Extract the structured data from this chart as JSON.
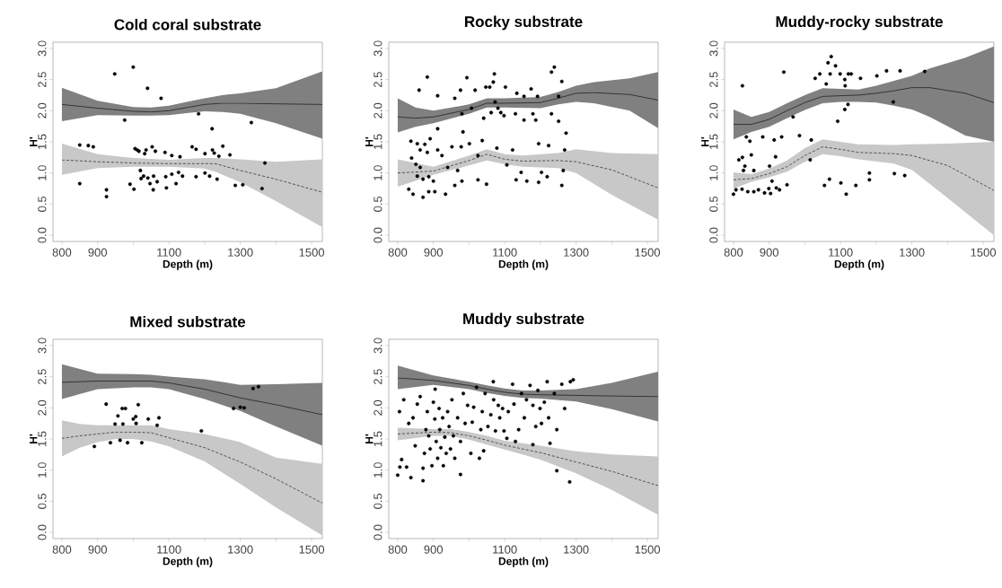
{
  "chart_data": [
    {
      "type": "scatter",
      "title": "Cold coral substrate",
      "xlabel": "Depth (m)",
      "ylabel": "H'",
      "xlim": [
        775,
        1530
      ],
      "ylim": [
        -0.1,
        3.1
      ],
      "xticks": [
        800,
        900,
        {
          "value": 1000,
          "label": null
        },
        1100,
        {
          "value": 1200,
          "label": null
        },
        1300,
        {
          "value": 1400,
          "label": null
        },
        1500
      ],
      "yticks": [
        {
          "value": 0,
          "label": "0.0"
        },
        {
          "value": 0.5,
          "label": "0.5"
        },
        {
          "value": 1,
          "label": "1.0"
        },
        {
          "value": 1.5,
          "label": "1.5"
        },
        {
          "value": 2,
          "label": "2.0"
        },
        {
          "value": 2.5,
          "label": "2.5"
        },
        {
          "value": 3,
          "label": "3.0"
        }
      ],
      "series": [
        {
          "type": "scatter",
          "color": "#000000",
          "marker": "circle",
          "x": [
            850,
            850,
            874,
            888,
            925,
            925,
            948,
            976,
            991,
            1000,
            1002,
            1005,
            1011,
            1016,
            1020,
            1022,
            1029,
            1032,
            1036,
            1040,
            1041,
            1047,
            1053,
            1056,
            1057,
            1062,
            1067,
            1078,
            1089,
            1091,
            1093,
            1108,
            1108,
            1120,
            1127,
            1131,
            1138,
            1165,
            1176,
            1176,
            1183,
            1201,
            1201,
            1214,
            1221,
            1222,
            1227,
            1235,
            1240,
            1251,
            1271,
            1286,
            1307,
            1331,
            1361,
            1369
          ],
          "values": [
            1.45,
            0.83,
            1.44,
            1.42,
            0.73,
            0.62,
            2.59,
            1.85,
            0.82,
            2.7,
            0.74,
            1.39,
            1.37,
            1.35,
            1.04,
            0.91,
            0.95,
            1.31,
            1.37,
            2.36,
            0.92,
            0.83,
            1.42,
            0.73,
            0.95,
            1.35,
            0.86,
            2.2,
            1.33,
            0.94,
            0.76,
            1.28,
            0.98,
            0.83,
            1.01,
            1.26,
            0.95,
            1.42,
            0.94,
            1.38,
            1.95,
            1.31,
            1.0,
            0.95,
            1.71,
            1.37,
            1.32,
            0.9,
            1.27,
            1.43,
            1.29,
            0.8,
            0.81,
            1.81,
            0.75,
            1.16
          ]
        },
        {
          "type": "line",
          "color": "#000000",
          "line_style": "solid",
          "x": [
            800,
            900,
            1000,
            1050,
            1100,
            1150,
            1200,
            1250,
            1300,
            1400,
            1530
          ],
          "values": [
            2.1,
            2.04,
            1.99,
            1.98,
            2.0,
            2.05,
            2.1,
            2.12,
            2.12,
            2.11,
            2.1
          ],
          "lower": [
            1.83,
            1.93,
            1.92,
            1.92,
            1.93,
            1.96,
            1.99,
            1.98,
            1.95,
            1.8,
            1.55
          ],
          "upper": [
            2.37,
            2.16,
            2.06,
            2.05,
            2.08,
            2.14,
            2.2,
            2.25,
            2.28,
            2.36,
            2.63
          ]
        },
        {
          "type": "line",
          "color": "#000000",
          "line_style": "dashed",
          "x": [
            800,
            900,
            1000,
            1100,
            1200,
            1230,
            1300,
            1400,
            1530
          ],
          "values": [
            1.21,
            1.18,
            1.16,
            1.15,
            1.15,
            1.15,
            1.04,
            0.9,
            0.69
          ],
          "lower": [
            0.97,
            1.08,
            1.1,
            1.1,
            1.07,
            1.02,
            0.85,
            0.55,
            0.13
          ],
          "upper": [
            1.47,
            1.3,
            1.24,
            1.21,
            1.24,
            1.24,
            1.22,
            1.18,
            1.22
          ]
        }
      ]
    },
    {
      "type": "scatter",
      "title": "Rocky substrate",
      "xlabel": "Depth (m)",
      "ylabel": "H'",
      "xlim": [
        775,
        1530
      ],
      "ylim": [
        -0.1,
        3.1
      ],
      "xticks": [
        800,
        900,
        {
          "value": 1000,
          "label": null
        },
        1100,
        {
          "value": 1200,
          "label": null
        },
        1300,
        {
          "value": 1400,
          "label": null
        },
        1500
      ],
      "yticks": [
        {
          "value": 0,
          "label": "0.0"
        },
        {
          "value": 0.5,
          "label": "0.5"
        },
        {
          "value": 1,
          "label": "1.0"
        },
        {
          "value": 1.5,
          "label": "1.5"
        },
        {
          "value": 2,
          "label": "2.0"
        },
        {
          "value": 2.5,
          "label": "2.5"
        },
        {
          "value": 3,
          "label": "3.0"
        }
      ],
      "series": [
        {
          "type": "scatter",
          "color": "#000000",
          "marker": "circle",
          "x": [
            860,
            883,
            912,
            837,
            855,
            863,
            876,
            883,
            891,
            839,
            851,
            863,
            855,
            871,
            887,
            900,
            831,
            843,
            871,
            887,
            904,
            912,
            912,
            924,
            934,
            940,
            952,
            960,
            968,
            978,
            980,
            983,
            960,
            976,
            994,
            980,
            1001,
            1007,
            1017,
            1025,
            1037,
            1041,
            1025,
            1047,
            1049,
            1058,
            1062,
            1068,
            1071,
            1073,
            1081,
            1089,
            1098,
            1106,
            1078,
            1102,
            1122,
            1130,
            1134,
            1132,
            1154,
            1154,
            1146,
            1174,
            1179,
            1162,
            1192,
            1187,
            1195,
            1203,
            1195,
            1223,
            1219,
            1231,
            1239,
            1231,
            1251,
            1251,
            1260,
            1264,
            1260,
            1268,
            1272
          ],
          "values": [
            2.33,
            2.54,
            2.24,
            1.51,
            1.47,
            1.37,
            1.46,
            1.33,
            1.55,
            1.24,
            1.14,
            1.09,
            0.95,
            0.9,
            0.94,
            0.87,
            0.74,
            0.66,
            0.61,
            0.7,
            0.7,
            1.37,
            1.71,
            1.28,
            0.66,
            1.09,
            1.42,
            0.8,
            1.04,
            1.42,
            0.87,
            1.66,
            2.2,
            2.33,
            2.53,
            1.95,
            1.47,
            2.04,
            2.33,
            1.28,
            1.52,
            1.88,
            0.89,
            2.38,
            0.82,
            2.38,
            1.97,
            2.46,
            2.59,
            2.14,
            2.04,
            1.97,
            1.92,
            1.13,
            1.4,
            2.38,
            1.37,
            1.95,
            2.28,
            0.89,
            1.85,
            2.23,
            1.01,
            2.35,
            1.95,
            0.87,
            2.23,
            1.85,
            1.47,
            1.01,
            0.85,
            1.44,
            0.94,
            2.62,
            2.7,
            1.95,
            2.23,
            1.83,
            2.47,
            1.04,
            0.8,
            1.37,
            1.64
          ]
        },
        {
          "type": "line",
          "color": "#000000",
          "line_style": "solid",
          "x": [
            800,
            850,
            900,
            1000,
            1050,
            1100,
            1200,
            1250,
            1300,
            1350,
            1450,
            1530
          ],
          "values": [
            1.9,
            1.88,
            1.9,
            2.02,
            2.12,
            2.12,
            2.13,
            2.2,
            2.28,
            2.29,
            2.26,
            2.17
          ],
          "lower": [
            1.65,
            1.74,
            1.8,
            1.95,
            2.05,
            2.05,
            2.04,
            2.1,
            2.14,
            2.12,
            2.0,
            1.72
          ],
          "upper": [
            2.2,
            2.05,
            2.0,
            2.1,
            2.2,
            2.2,
            2.22,
            2.3,
            2.4,
            2.46,
            2.52,
            2.62
          ]
        },
        {
          "type": "line",
          "color": "#000000",
          "line_style": "dashed",
          "x": [
            800,
            900,
            1000,
            1050,
            1100,
            1150,
            1250,
            1300,
            1400,
            1530
          ],
          "values": [
            1.0,
            1.03,
            1.2,
            1.3,
            1.22,
            1.19,
            1.2,
            1.18,
            1.05,
            0.76
          ],
          "lower": [
            0.78,
            0.97,
            1.12,
            1.2,
            1.14,
            1.1,
            1.08,
            1.0,
            0.65,
            0.25
          ],
          "upper": [
            1.22,
            1.1,
            1.28,
            1.38,
            1.3,
            1.28,
            1.32,
            1.38,
            1.32,
            1.3
          ]
        }
      ]
    },
    {
      "type": "scatter",
      "title": "Muddy-rocky substrate",
      "xlabel": "Depth (m)",
      "ylabel": "H'",
      "xlim": [
        775,
        1530
      ],
      "ylim": [
        -0.1,
        3.1
      ],
      "xticks": [
        800,
        900,
        {
          "value": 1000,
          "label": null
        },
        1100,
        {
          "value": 1200,
          "label": null
        },
        1300,
        {
          "value": 1400,
          "label": null
        },
        1500
      ],
      "yticks": [
        {
          "value": 0,
          "label": "0.0"
        },
        {
          "value": 0.5,
          "label": "0.5"
        },
        {
          "value": 1,
          "label": "1.0"
        },
        {
          "value": 1.5,
          "label": "1.5"
        },
        {
          "value": 2,
          "label": "2.0"
        },
        {
          "value": 2.5,
          "label": "2.5"
        },
        {
          "value": 3,
          "label": "3.0"
        }
      ],
      "series": [
        {
          "type": "scatter",
          "color": "#000000",
          "marker": "circle",
          "x": [
            800,
            807,
            815,
            825,
            825,
            828,
            832,
            836,
            840,
            846,
            850,
            857,
            824,
            857,
            870,
            882,
            887,
            899,
            901,
            904,
            908,
            914,
            918,
            920,
            929,
            935,
            941,
            950,
            967,
            985,
            1015,
            1018,
            1029,
            1042,
            1055,
            1060,
            1065,
            1069,
            1071,
            1074,
            1086,
            1092,
            1099,
            1101,
            1112,
            1113,
            1112,
            1116,
            1121,
            1122,
            1130,
            1143,
            1156,
            1181,
            1181,
            1202,
            1229,
            1248,
            1251,
            1267,
            1280,
            1336
          ],
          "values": [
            0.66,
            0.73,
            1.21,
            2.4,
            1.25,
            1.04,
            1.11,
            1.58,
            0.7,
            1.51,
            1.29,
            1.04,
            0.74,
            0.7,
            0.73,
            1.58,
            0.68,
            0.75,
            1.11,
            0.67,
            0.87,
            1.53,
            1.26,
            0.76,
            0.73,
            1.58,
            2.62,
            0.81,
            1.9,
            1.6,
            1.21,
            1.53,
            2.52,
            2.59,
            0.8,
            2.43,
            2.77,
            0.9,
            2.59,
            2.87,
            2.72,
            1.83,
            2.59,
            0.84,
            2.5,
            2.4,
            2.02,
            0.66,
            2.1,
            2.59,
            2.59,
            0.8,
            2.52,
            1.0,
            0.89,
            2.56,
            2.64,
            2.14,
            0.99,
            2.64,
            0.96,
            2.63
          ]
        },
        {
          "type": "line",
          "color": "#000000",
          "line_style": "solid",
          "x": [
            800,
            850,
            900,
            950,
            1000,
            1050,
            1100,
            1150,
            1200,
            1250,
            1300,
            1350,
            1450,
            1530
          ],
          "values": [
            1.78,
            1.78,
            1.86,
            2.0,
            2.13,
            2.23,
            2.24,
            2.25,
            2.28,
            2.32,
            2.37,
            2.37,
            2.28,
            2.13
          ],
          "lower": [
            1.54,
            1.66,
            1.74,
            1.88,
            2.01,
            2.12,
            2.14,
            2.14,
            2.13,
            2.08,
            2.02,
            1.9,
            1.6,
            1.5
          ],
          "upper": [
            2.02,
            1.9,
            1.98,
            2.12,
            2.25,
            2.36,
            2.35,
            2.34,
            2.4,
            2.48,
            2.56,
            2.68,
            2.85,
            3.03
          ]
        },
        {
          "type": "line",
          "color": "#000000",
          "line_style": "dashed",
          "x": [
            800,
            850,
            900,
            950,
            1000,
            1050,
            1100,
            1150,
            1250,
            1300,
            1400,
            1530
          ],
          "values": [
            0.89,
            0.91,
            0.99,
            1.1,
            1.28,
            1.42,
            1.38,
            1.33,
            1.31,
            1.28,
            1.12,
            0.72
          ],
          "lower": [
            0.75,
            0.86,
            0.93,
            1.02,
            1.18,
            1.3,
            1.27,
            1.22,
            1.15,
            1.05,
            0.6,
            0.0
          ],
          "upper": [
            1.01,
            0.98,
            1.07,
            1.2,
            1.4,
            1.54,
            1.5,
            1.46,
            1.45,
            1.46,
            1.47,
            1.5
          ]
        }
      ]
    },
    {
      "type": "scatter",
      "title": "Mixed substrate",
      "xlabel": "Depth (m)",
      "ylabel": "H'",
      "xlim": [
        775,
        1530
      ],
      "ylim": [
        -0.1,
        3.1
      ],
      "xticks": [
        800,
        900,
        {
          "value": 1000,
          "label": null
        },
        1100,
        {
          "value": 1200,
          "label": null
        },
        1300,
        {
          "value": 1400,
          "label": null
        },
        1500
      ],
      "yticks": [
        {
          "value": 0,
          "label": "0.0"
        },
        {
          "value": 0.5,
          "label": "0.5"
        },
        {
          "value": 1,
          "label": "1.0"
        },
        {
          "value": 1.5,
          "label": "1.5"
        },
        {
          "value": 2,
          "label": "2.0"
        },
        {
          "value": 2.5,
          "label": "2.5"
        },
        {
          "value": 3,
          "label": "3.0"
        }
      ],
      "series": [
        {
          "type": "scatter",
          "color": "#000000",
          "marker": "circle",
          "x": [
            891,
            924,
            936,
            949,
            957,
            963,
            969,
            971,
            978,
            984,
            1000,
            1007,
            1008,
            1014,
            1024,
            1042,
            1067,
            1072,
            1191,
            1281,
            1300,
            1311,
            1336,
            1351
          ],
          "values": [
            1.38,
            2.06,
            1.44,
            1.74,
            1.87,
            1.48,
            1.99,
            1.74,
            1.99,
            1.44,
            1.82,
            1.86,
            1.75,
            2.05,
            1.44,
            1.82,
            1.72,
            1.84,
            1.63,
            1.99,
            2.01,
            2.0,
            2.31,
            2.34
          ]
        },
        {
          "type": "line",
          "color": "#000000",
          "line_style": "solid",
          "x": [
            800,
            900,
            1000,
            1050,
            1100,
            1200,
            1300,
            1400,
            1530
          ],
          "values": [
            2.41,
            2.43,
            2.43,
            2.43,
            2.4,
            2.3,
            2.16,
            2.05,
            1.89
          ],
          "lower": [
            2.14,
            2.3,
            2.33,
            2.33,
            2.3,
            2.14,
            1.95,
            1.7,
            1.39
          ],
          "upper": [
            2.7,
            2.55,
            2.54,
            2.53,
            2.5,
            2.46,
            2.37,
            2.38,
            2.4
          ]
        },
        {
          "type": "line",
          "color": "#000000",
          "line_style": "dashed",
          "x": [
            800,
            850,
            900,
            950,
            1000,
            1050,
            1100,
            1200,
            1300,
            1400,
            1530
          ],
          "values": [
            1.51,
            1.55,
            1.58,
            1.61,
            1.61,
            1.6,
            1.52,
            1.36,
            1.13,
            0.86,
            0.47
          ],
          "lower": [
            1.22,
            1.36,
            1.45,
            1.5,
            1.5,
            1.46,
            1.38,
            1.14,
            0.78,
            0.4,
            -0.05
          ],
          "upper": [
            1.8,
            1.74,
            1.72,
            1.72,
            1.72,
            1.72,
            1.66,
            1.58,
            1.45,
            1.2,
            1.1
          ]
        }
      ]
    },
    {
      "type": "scatter",
      "title": "Muddy substrate",
      "xlabel": "Depth (m)",
      "ylabel": "H'",
      "xlim": [
        775,
        1530
      ],
      "ylim": [
        -0.1,
        3.1
      ],
      "xticks": [
        800,
        900,
        {
          "value": 1000,
          "label": null
        },
        1100,
        {
          "value": 1200,
          "label": null
        },
        1300,
        {
          "value": 1400,
          "label": null
        },
        1500
      ],
      "yticks": [
        {
          "value": 0,
          "label": "0.0"
        },
        {
          "value": 0.5,
          "label": "0.5"
        },
        {
          "value": 1,
          "label": "1.0"
        },
        {
          "value": 1.5,
          "label": "1.5"
        },
        {
          "value": 2,
          "label": "2.0"
        },
        {
          "value": 2.5,
          "label": "2.5"
        },
        {
          "value": 3,
          "label": "3.0"
        }
      ],
      "series": [
        {
          "type": "scatter",
          "color": "#000000",
          "marker": "circle",
          "x": [
            800,
            806,
            811,
            805,
            817,
            825,
            837,
            831,
            843,
            849,
            855,
            863,
            871,
            871,
            875,
            879,
            883,
            887,
            891,
            896,
            900,
            904,
            905,
            908,
            912,
            916,
            918,
            921,
            926,
            928,
            932,
            936,
            940,
            944,
            948,
            952,
            956,
            960,
            968,
            976,
            976,
            984,
            989,
            996,
            1005,
            1009,
            1013,
            1021,
            1029,
            1033,
            1037,
            1041,
            1045,
            1053,
            1061,
            1068,
            1069,
            1074,
            1082,
            1086,
            1094,
            1098,
            1106,
            1110,
            1122,
            1126,
            1130,
            1139,
            1147,
            1155,
            1161,
            1171,
            1179,
            1179,
            1187,
            1193,
            1199,
            1203,
            1211,
            1219,
            1223,
            1227,
            1239,
            1246,
            1246,
            1260,
            1268,
            1282,
            1284,
            1292
          ],
          "values": [
            0.92,
            1.05,
            1.17,
            1.94,
            2.13,
            1.05,
            0.88,
            1.75,
            1.84,
            1.39,
            2.06,
            2.18,
            0.83,
            1.03,
            1.27,
            1.65,
            1.94,
            1.55,
            1.34,
            1.07,
            2.09,
            1.82,
            2.3,
            1.46,
            1.19,
            1.99,
            1.65,
            1.36,
            1.84,
            1.07,
            1.53,
            1.27,
            1.94,
            1.7,
            1.34,
            2.13,
            1.55,
            1.19,
            1.84,
            0.93,
            1.46,
            2.23,
            1.75,
            2.04,
            1.27,
            1.77,
            2.01,
            2.33,
            1.19,
            1.65,
            1.94,
            1.31,
            2.23,
            1.7,
            1.89,
            2.42,
            2.13,
            1.63,
            2.04,
            1.84,
            1.99,
            1.63,
            1.51,
            1.94,
            2.38,
            2.06,
            1.46,
            1.65,
            2.23,
            1.84,
            2.13,
            2.36,
            2.04,
            1.41,
            1.7,
            2.28,
            1.99,
            1.75,
            2.09,
            2.42,
            1.84,
            1.43,
            2.23,
            1.65,
            0.99,
            2.38,
            1.99,
            0.81,
            2.42,
            2.45
          ]
        },
        {
          "type": "line",
          "color": "#000000",
          "line_style": "solid",
          "x": [
            800,
            900,
            1000,
            1050,
            1100,
            1150,
            1200,
            1300,
            1400,
            1530
          ],
          "values": [
            2.48,
            2.44,
            2.36,
            2.3,
            2.25,
            2.22,
            2.21,
            2.2,
            2.19,
            2.18
          ],
          "lower": [
            2.3,
            2.37,
            2.3,
            2.24,
            2.19,
            2.16,
            2.15,
            2.1,
            1.98,
            1.78
          ],
          "upper": [
            2.68,
            2.52,
            2.42,
            2.36,
            2.31,
            2.28,
            2.28,
            2.3,
            2.4,
            2.58
          ]
        },
        {
          "type": "line",
          "color": "#000000",
          "line_style": "dashed",
          "x": [
            800,
            900,
            950,
            1000,
            1050,
            1100,
            1200,
            1300,
            1400,
            1530
          ],
          "values": [
            1.58,
            1.61,
            1.6,
            1.55,
            1.48,
            1.4,
            1.28,
            1.13,
            0.98,
            0.75
          ],
          "lower": [
            1.48,
            1.55,
            1.55,
            1.49,
            1.41,
            1.33,
            1.17,
            0.95,
            0.68,
            0.28
          ],
          "upper": [
            1.68,
            1.66,
            1.66,
            1.61,
            1.55,
            1.47,
            1.39,
            1.3,
            1.25,
            1.22
          ]
        }
      ]
    }
  ]
}
